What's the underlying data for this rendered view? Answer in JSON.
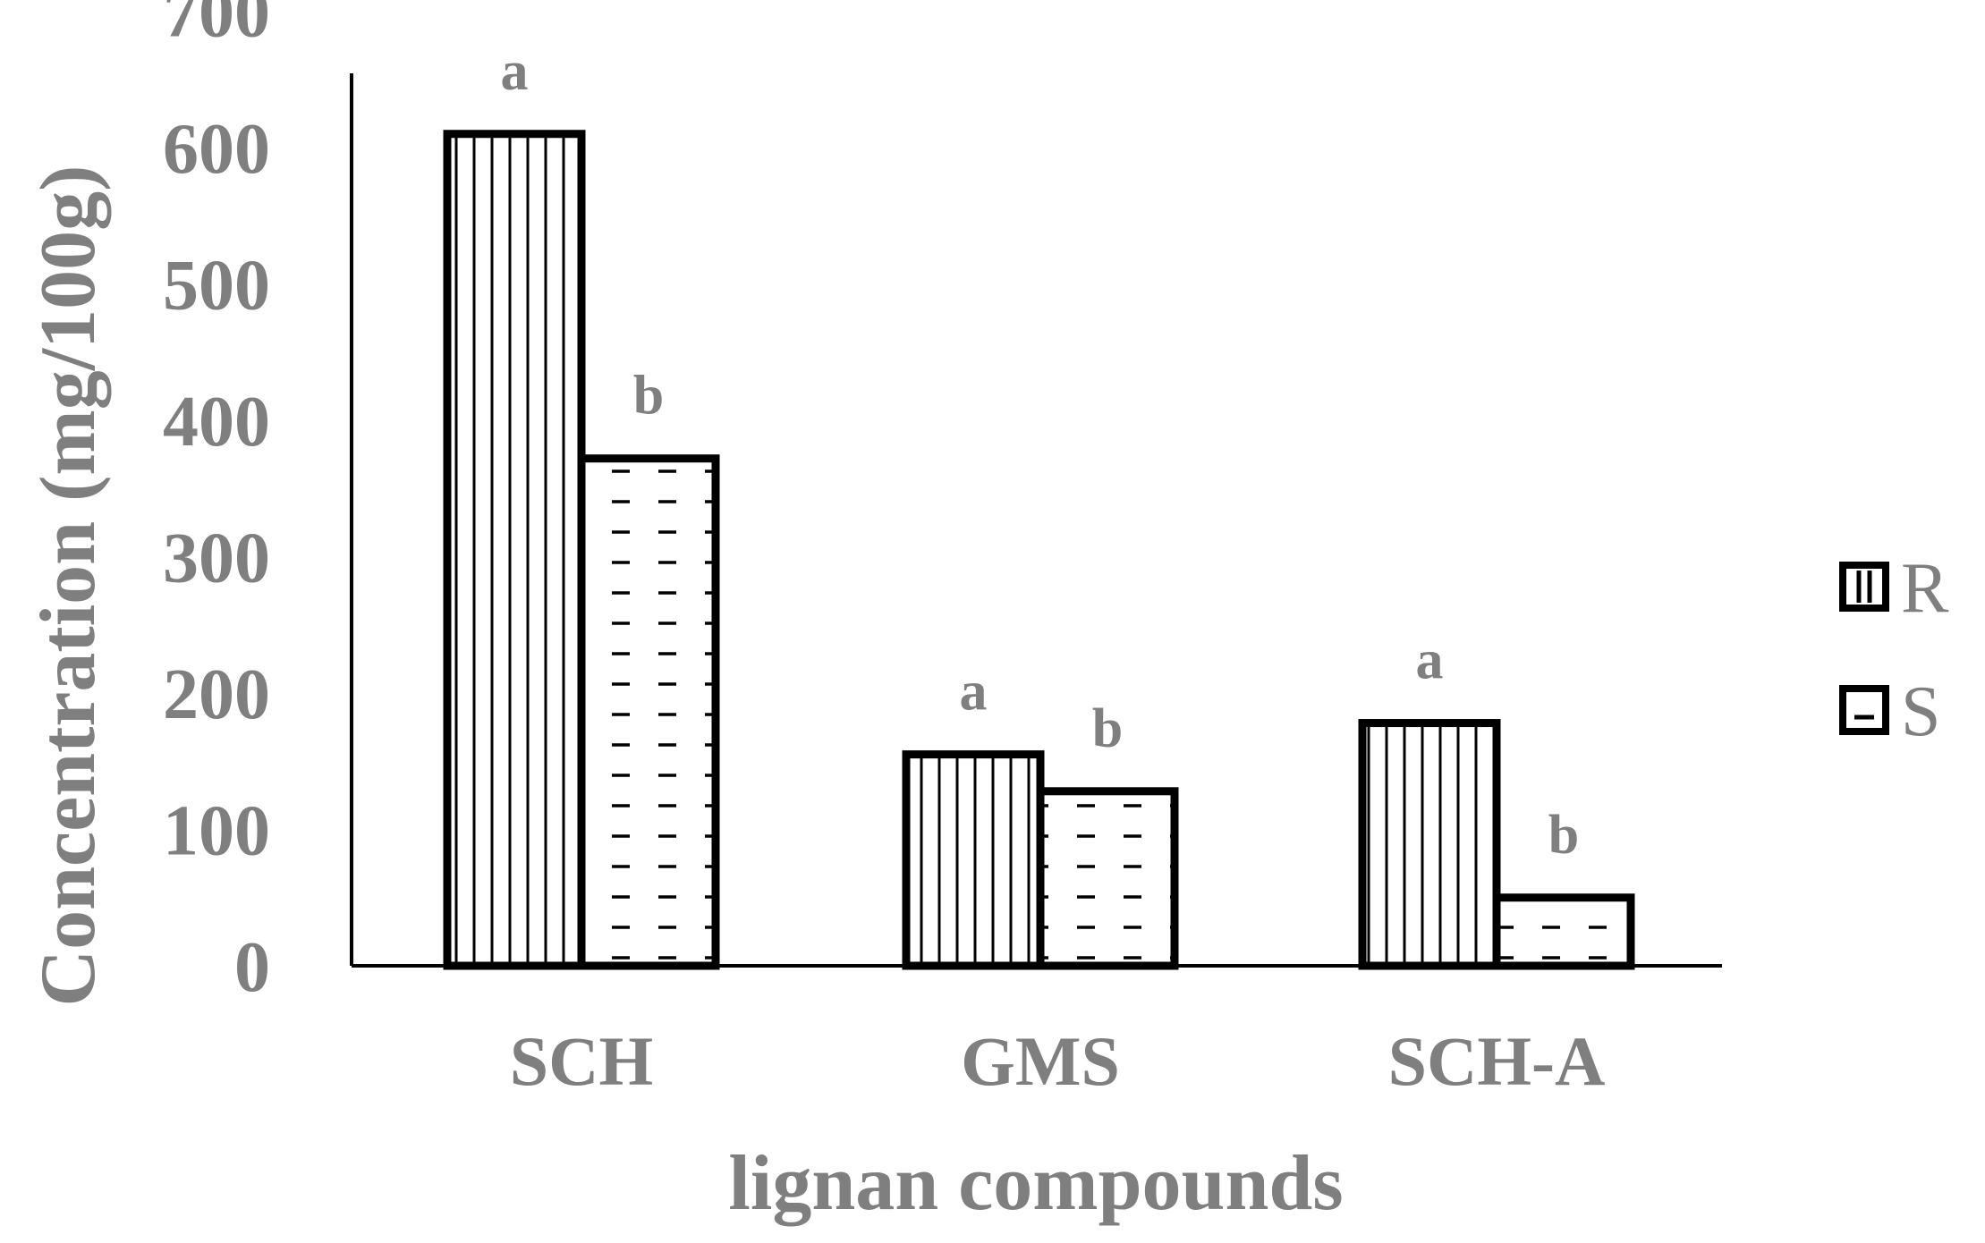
{
  "chart_data": {
    "type": "bar",
    "title": "",
    "xlabel": "lignan compounds",
    "ylabel": "Concentration (mg/100g)",
    "ylim": [
      0,
      700
    ],
    "yticks": [
      "0",
      "100",
      "200",
      "300",
      "400",
      "500",
      "600",
      "700"
    ],
    "categories": [
      "SCH",
      "GMS",
      "SCH-A"
    ],
    "series": [
      {
        "name": "R",
        "pattern": "vertical-lines",
        "values": [
          610,
          155,
          178
        ],
        "significance": [
          "a",
          "a",
          "a"
        ]
      },
      {
        "name": "S",
        "pattern": "dashed-horizontal",
        "values": [
          372,
          128,
          50
        ],
        "significance": [
          "b",
          "b",
          "b"
        ]
      }
    ],
    "grid": false,
    "legend_position": "right",
    "colors": {
      "text": "#7f7f7f",
      "bar_stroke": "#000000",
      "bar_fill": "#ffffff",
      "axis": "#000000"
    }
  }
}
